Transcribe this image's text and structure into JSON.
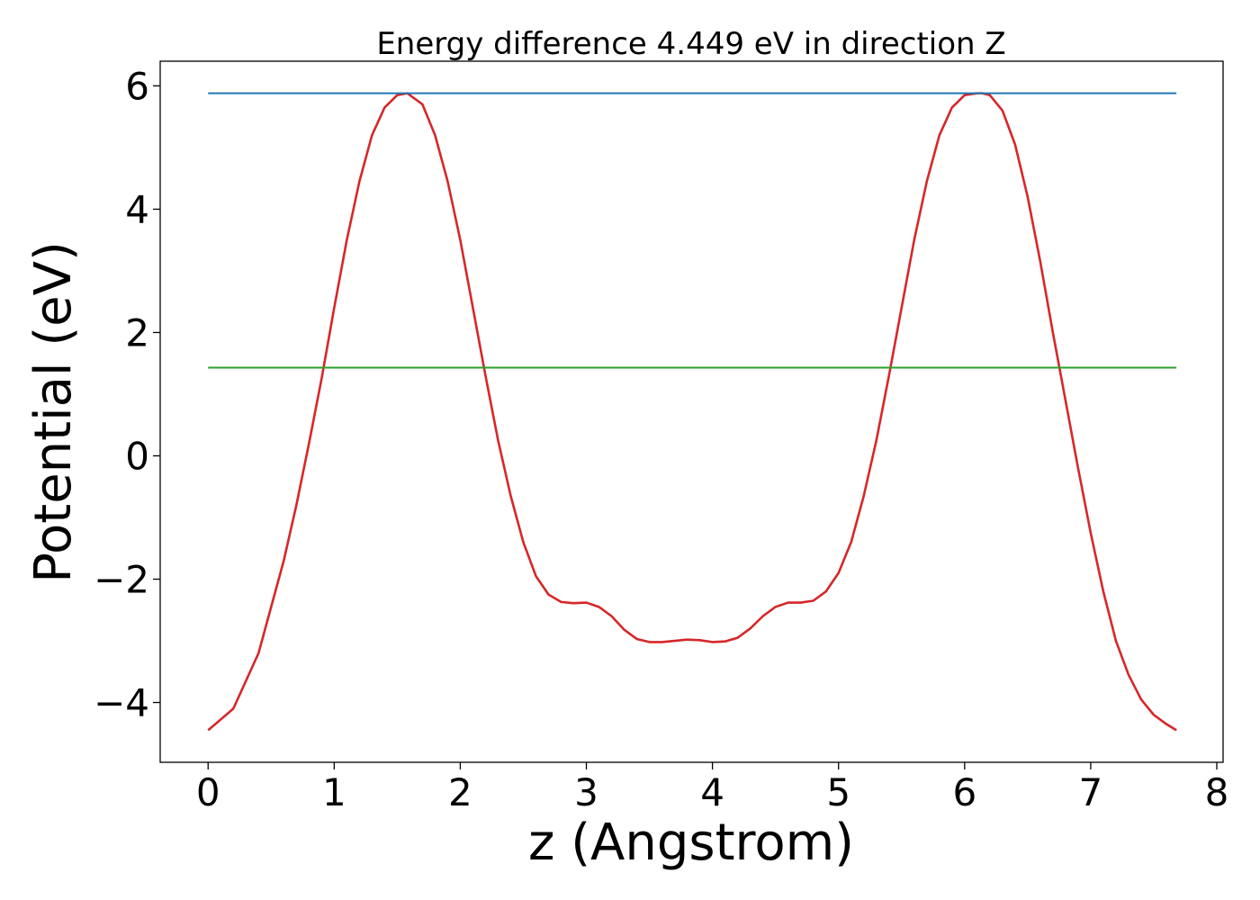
{
  "chart_data": {
    "type": "line",
    "title": "Energy difference 4.449 eV in direction Z",
    "xlabel": "z (Angstrom)",
    "ylabel": "Potential (eV)",
    "xlim": [
      -0.38,
      8.05
    ],
    "ylim": [
      -4.97,
      6.4
    ],
    "xticks": [
      0,
      1,
      2,
      3,
      4,
      5,
      6,
      7,
      8
    ],
    "xtick_labels": [
      "0",
      "1",
      "2",
      "3",
      "4",
      "5",
      "6",
      "7",
      "8"
    ],
    "yticks": [
      -4,
      -2,
      0,
      2,
      4,
      6
    ],
    "ytick_labels": [
      "−4",
      "−2",
      "0",
      "2",
      "4",
      "6"
    ],
    "grid": false,
    "series": [
      {
        "color": "#d62728",
        "x": [
          0.0,
          0.2,
          0.4,
          0.6,
          0.7,
          0.8,
          0.9,
          1.0,
          1.1,
          1.2,
          1.3,
          1.4,
          1.5,
          1.58,
          1.7,
          1.8,
          1.9,
          2.0,
          2.1,
          2.2,
          2.3,
          2.4,
          2.5,
          2.6,
          2.7,
          2.8,
          2.9,
          3.0,
          3.1,
          3.2,
          3.3,
          3.4,
          3.5,
          3.6,
          3.7,
          3.8,
          3.9,
          4.0,
          4.1,
          4.2,
          4.3,
          4.4,
          4.5,
          4.6,
          4.7,
          4.8,
          4.9,
          5.0,
          5.1,
          5.2,
          5.3,
          5.4,
          5.5,
          5.6,
          5.7,
          5.8,
          5.9,
          6.0,
          6.1,
          6.14,
          6.2,
          6.3,
          6.4,
          6.5,
          6.6,
          6.7,
          6.8,
          6.9,
          7.0,
          7.1,
          7.2,
          7.3,
          7.4,
          7.5,
          7.6,
          7.68
        ],
        "y": [
          -4.45,
          -4.1,
          -3.2,
          -1.7,
          -0.8,
          0.2,
          1.25,
          2.4,
          3.5,
          4.45,
          5.2,
          5.65,
          5.85,
          5.88,
          5.7,
          5.2,
          4.45,
          3.5,
          2.4,
          1.3,
          0.25,
          -0.65,
          -1.4,
          -1.95,
          -2.25,
          -2.37,
          -2.39,
          -2.38,
          -2.45,
          -2.6,
          -2.82,
          -2.97,
          -3.02,
          -3.02,
          -3.0,
          -2.98,
          -2.99,
          -3.02,
          -3.01,
          -2.95,
          -2.8,
          -2.6,
          -2.45,
          -2.38,
          -2.38,
          -2.35,
          -2.2,
          -1.9,
          -1.4,
          -0.65,
          0.25,
          1.3,
          2.4,
          3.5,
          4.45,
          5.2,
          5.65,
          5.85,
          5.88,
          5.88,
          5.85,
          5.6,
          5.05,
          4.2,
          3.15,
          2.0,
          0.9,
          -0.2,
          -1.25,
          -2.2,
          -3.0,
          -3.55,
          -3.95,
          -4.2,
          -4.35,
          -4.45
        ]
      },
      {
        "color": "#1f77b4",
        "x": [
          0.0,
          7.68
        ],
        "y": [
          5.88,
          5.88
        ]
      },
      {
        "color": "#2ca02c",
        "x": [
          0.0,
          7.68
        ],
        "y": [
          1.43,
          1.43
        ]
      }
    ]
  }
}
